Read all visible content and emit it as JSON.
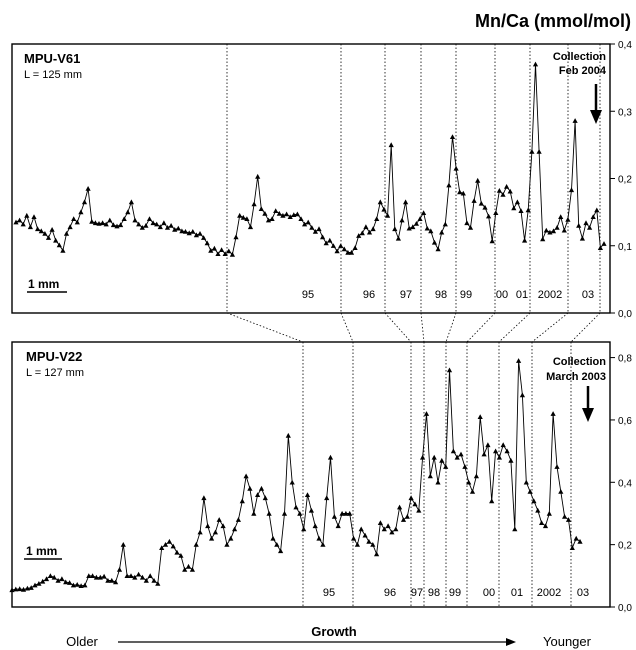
{
  "axis_title": "Mn/Ca (mmol/mol)",
  "arrow": {
    "left": "Older",
    "center": "Growth",
    "right": "Younger"
  },
  "chart_data": [
    {
      "type": "line",
      "specimen": "MPU-V61",
      "length_label": "L = 125 mm",
      "collection_label": [
        "Collection",
        "Feb 2004"
      ],
      "scale_bar_label": "1 mm",
      "ylabel": "Mn/Ca (mmol/mol)",
      "ylim": [
        0,
        0.4
      ],
      "yticks": [
        "0,0",
        "0,1",
        "0,2",
        "0,3",
        "0,4"
      ],
      "ytick_values": [
        0,
        0.1,
        0.2,
        0.3,
        0.4
      ],
      "x_unit": "sample index (older → younger)",
      "series": [
        {
          "values": [
            0.135,
            0.138,
            0.132,
            0.145,
            0.128,
            0.143,
            0.125,
            0.122,
            0.118,
            0.112,
            0.124,
            0.108,
            0.101,
            0.093,
            0.118,
            0.128,
            0.14,
            0.135,
            0.15,
            0.165,
            0.185,
            0.136,
            0.134,
            0.133,
            0.134,
            0.132,
            0.138,
            0.131,
            0.129,
            0.131,
            0.14,
            0.15,
            0.165,
            0.138,
            0.132,
            0.127,
            0.13,
            0.14,
            0.134,
            0.132,
            0.128,
            0.134,
            0.127,
            0.13,
            0.124,
            0.126,
            0.122,
            0.121,
            0.119,
            0.121,
            0.116,
            0.118,
            0.112,
            0.104,
            0.093,
            0.096,
            0.088,
            0.094,
            0.088,
            0.092,
            0.087,
            0.113,
            0.145,
            0.142,
            0.14,
            0.128,
            0.162,
            0.203,
            0.155,
            0.148,
            0.138,
            0.14,
            0.152,
            0.148,
            0.145,
            0.147,
            0.143,
            0.146,
            0.147,
            0.14,
            0.132,
            0.135,
            0.127,
            0.121,
            0.125,
            0.113,
            0.104,
            0.108,
            0.1,
            0.092,
            0.1,
            0.095,
            0.09,
            0.09,
            0.097,
            0.115,
            0.119,
            0.128,
            0.12,
            0.125,
            0.14,
            0.165,
            0.154,
            0.145,
            0.25,
            0.125,
            0.111,
            0.138,
            0.165,
            0.126,
            0.128,
            0.133,
            0.14,
            0.149,
            0.126,
            0.122,
            0.105,
            0.095,
            0.12,
            0.132,
            0.19,
            0.262,
            0.215,
            0.18,
            0.178,
            0.134,
            0.127,
            0.167,
            0.197,
            0.163,
            0.157,
            0.144,
            0.107,
            0.149,
            0.182,
            0.176,
            0.188,
            0.181,
            0.156,
            0.165,
            0.152,
            0.108,
            0.153,
            0.24,
            0.37,
            0.24,
            0.11,
            0.123,
            0.12,
            0.122,
            0.127,
            0.143,
            0.123,
            0.139,
            0.183,
            0.286,
            0.13,
            0.111,
            0.134,
            0.127,
            0.143,
            0.153,
            0.097,
            0.103
          ]
        }
      ],
      "year_labels": [
        "95",
        "96",
        "97",
        "98",
        "99",
        "00",
        "01",
        "2002",
        "03"
      ]
    },
    {
      "type": "line",
      "specimen": "MPU-V22",
      "length_label": "L = 127 mm",
      "collection_label": [
        "Collection",
        "March 2003"
      ],
      "scale_bar_label": "1 mm",
      "ylabel": "Mn/Ca (mmol/mol)",
      "ylim": [
        0,
        0.85
      ],
      "yticks": [
        "0,0",
        "0,2",
        "0,4",
        "0,6",
        "0,8"
      ],
      "ytick_values": [
        0,
        0.2,
        0.4,
        0.6,
        0.8
      ],
      "x_unit": "sample index (older → younger)",
      "series": [
        {
          "values": [
            0.055,
            0.057,
            0.058,
            0.056,
            0.06,
            0.062,
            0.07,
            0.075,
            0.082,
            0.09,
            0.1,
            0.095,
            0.085,
            0.09,
            0.08,
            0.078,
            0.07,
            0.072,
            0.068,
            0.07,
            0.1,
            0.1,
            0.095,
            0.095,
            0.098,
            0.085,
            0.085,
            0.08,
            0.12,
            0.2,
            0.1,
            0.1,
            0.095,
            0.105,
            0.095,
            0.085,
            0.1,
            0.085,
            0.075,
            0.19,
            0.2,
            0.21,
            0.195,
            0.175,
            0.165,
            0.12,
            0.13,
            0.12,
            0.2,
            0.24,
            0.35,
            0.26,
            0.22,
            0.24,
            0.28,
            0.26,
            0.2,
            0.22,
            0.25,
            0.28,
            0.34,
            0.42,
            0.38,
            0.3,
            0.36,
            0.38,
            0.35,
            0.3,
            0.22,
            0.2,
            0.18,
            0.3,
            0.55,
            0.4,
            0.32,
            0.3,
            0.25,
            0.36,
            0.31,
            0.26,
            0.22,
            0.2,
            0.35,
            0.48,
            0.29,
            0.26,
            0.3,
            0.3,
            0.3,
            0.22,
            0.2,
            0.25,
            0.23,
            0.21,
            0.2,
            0.17,
            0.27,
            0.25,
            0.26,
            0.24,
            0.25,
            0.32,
            0.28,
            0.29,
            0.35,
            0.33,
            0.31,
            0.48,
            0.62,
            0.42,
            0.48,
            0.4,
            0.47,
            0.45,
            0.76,
            0.5,
            0.48,
            0.49,
            0.45,
            0.4,
            0.37,
            0.42,
            0.61,
            0.49,
            0.52,
            0.34,
            0.5,
            0.48,
            0.52,
            0.5,
            0.47,
            0.25,
            0.79,
            0.68,
            0.4,
            0.37,
            0.34,
            0.31,
            0.27,
            0.26,
            0.3,
            0.62,
            0.45,
            0.37,
            0.29,
            0.28,
            0.19,
            0.22,
            0.21
          ]
        }
      ],
      "year_labels": [
        "95",
        "96",
        "97",
        "98",
        "99",
        "00",
        "01",
        "2002",
        "03"
      ]
    }
  ]
}
